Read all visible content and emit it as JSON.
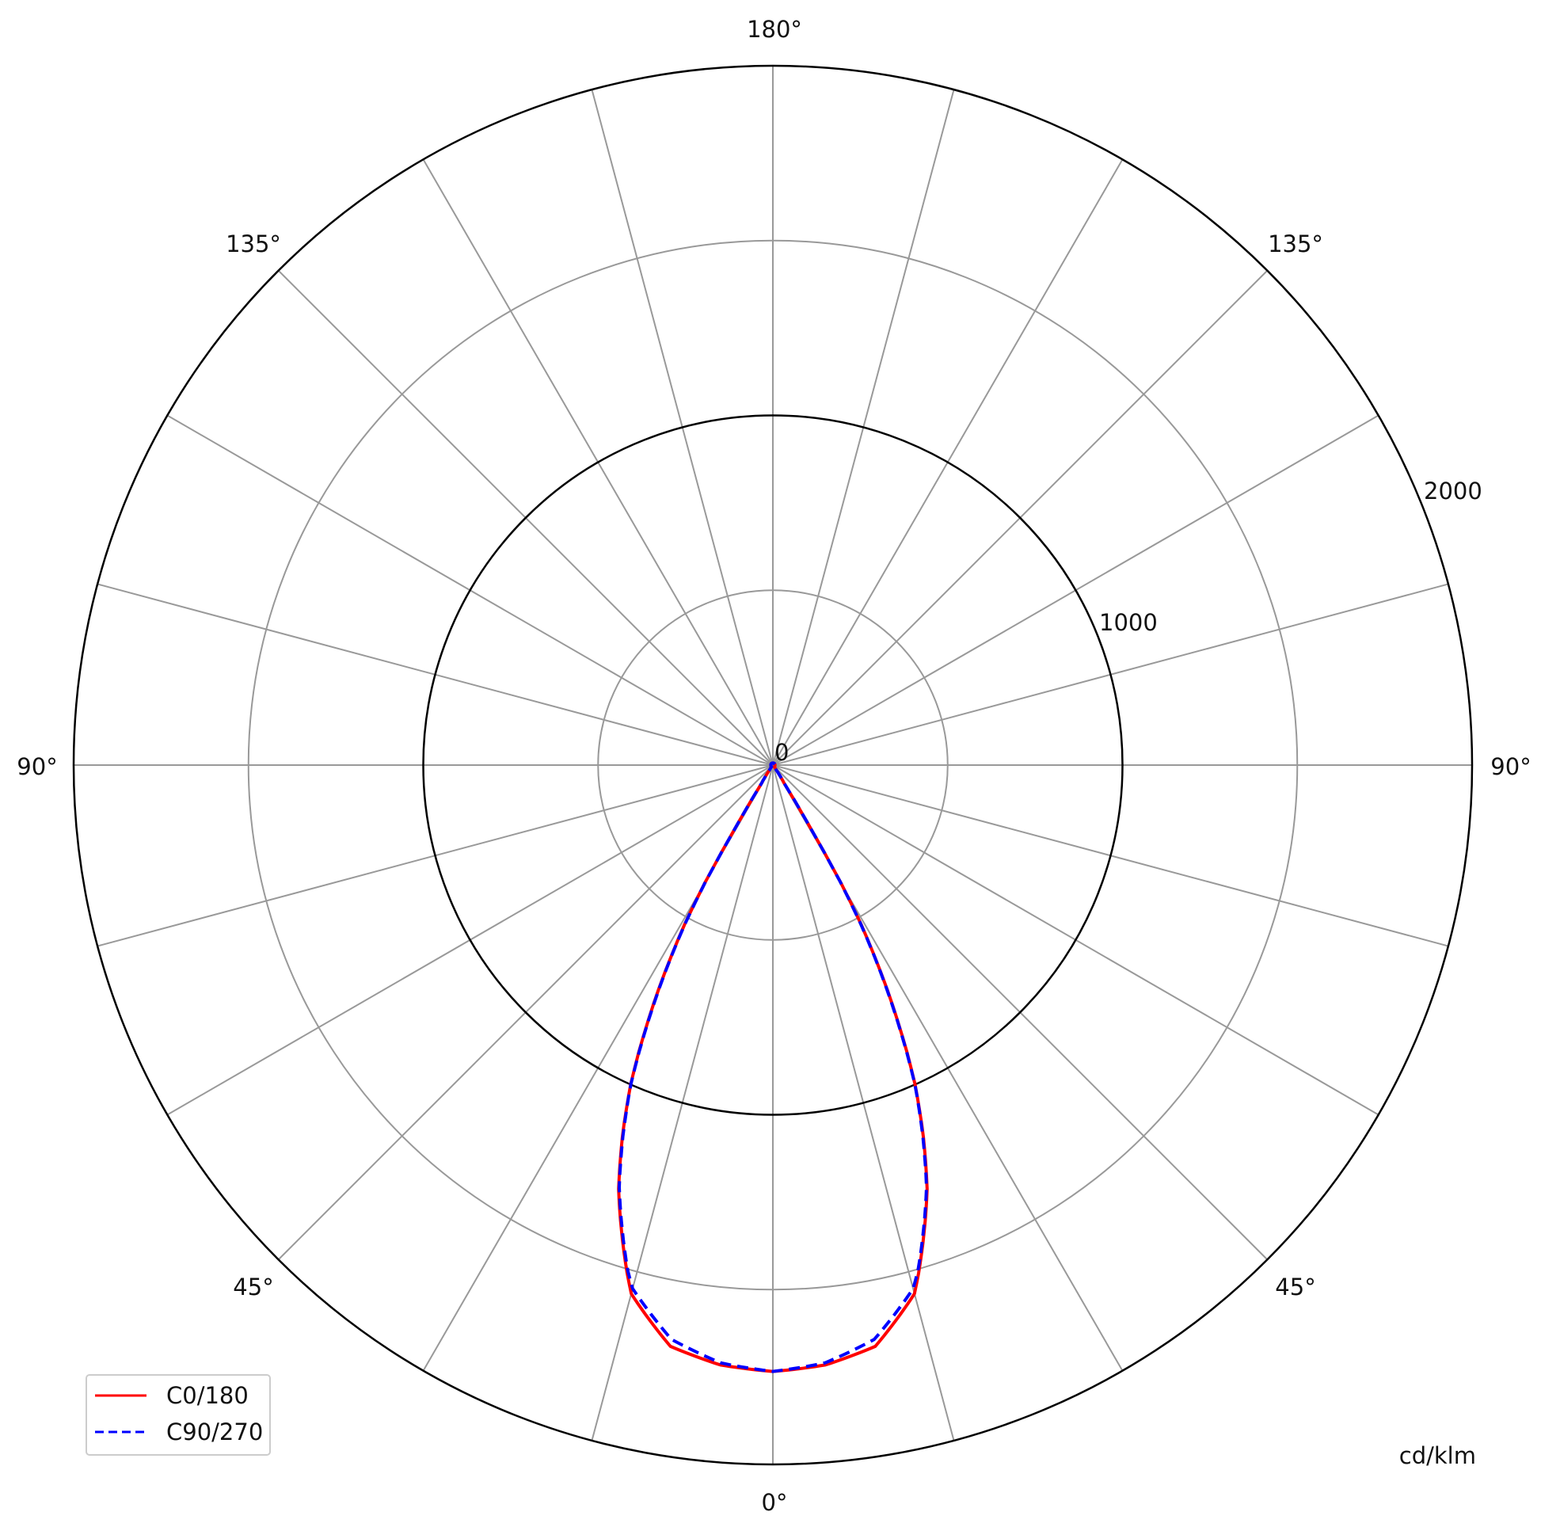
{
  "chart_data": {
    "type": "polar",
    "unit_label": "cd/klm",
    "angle_orientation": "0° at bottom, 180° at top, mirrored left/right",
    "angle_tick_labels": [
      "0°",
      "45°",
      "90°",
      "135°",
      "180°"
    ],
    "angle_gridline_step_deg": 15,
    "radial_range": [
      0,
      2000
    ],
    "radial_gridlines": [
      500,
      1000,
      1500,
      2000
    ],
    "radial_major_gridlines": [
      1000,
      2000
    ],
    "radial_tick_labels": [
      "0",
      "1000",
      "2000"
    ],
    "grid": true,
    "legend_placement": "bottom-left",
    "series": [
      {
        "name": "C0/180",
        "color": "#ff0000",
        "style": "solid",
        "angles_deg": [
          0,
          5,
          10,
          15,
          16,
          20,
          22,
          24,
          25,
          27,
          29,
          30,
          31,
          32,
          35,
          40,
          45,
          90,
          180
        ],
        "values": [
          1734,
          1722,
          1688,
          1565,
          1512,
          1290,
          1150,
          1000,
          910,
          720,
          520,
          390,
          190,
          60,
          15,
          5,
          0,
          0,
          0
        ]
      },
      {
        "name": "C90/270",
        "color": "#0000ff",
        "style": "dashed",
        "angles_deg": [
          0,
          5,
          10,
          15,
          16,
          20,
          22,
          24,
          25,
          27,
          29,
          30,
          31,
          32,
          35,
          40,
          45,
          90,
          180
        ],
        "values": [
          1734,
          1716,
          1668,
          1550,
          1505,
          1285,
          1145,
          998,
          905,
          715,
          515,
          385,
          185,
          60,
          15,
          5,
          0,
          0,
          0
        ]
      }
    ]
  }
}
